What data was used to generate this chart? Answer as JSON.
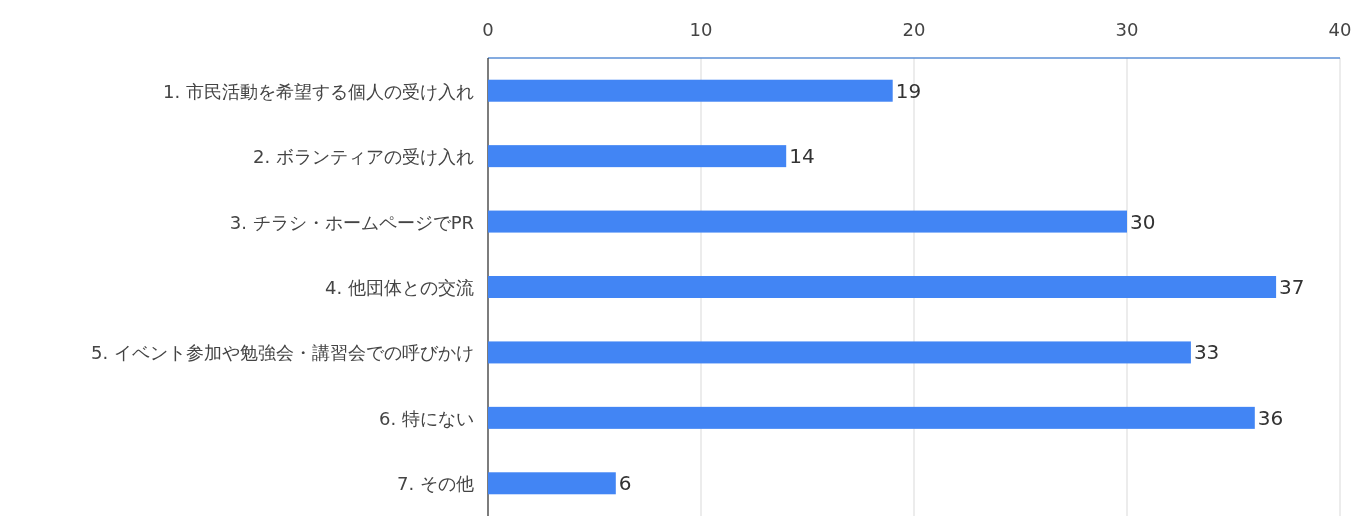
{
  "chart_data": {
    "type": "bar",
    "orientation": "horizontal",
    "categories": [
      "1. 市民活動を希望する個人の受け入れ",
      "2. ボランティアの受け入れ",
      "3. チラシ・ホームページでPR",
      "4. 他団体との交流",
      "5. イベント参加や勉強会・講習会での呼びかけ",
      "6. 特にない",
      "7. その他"
    ],
    "values": [
      19,
      14,
      30,
      37,
      33,
      36,
      6
    ],
    "color": "#4285f4",
    "xlim": [
      0,
      40
    ],
    "xticks": [
      0,
      10,
      20,
      30,
      40
    ],
    "grid": "x",
    "data_labels": true
  }
}
